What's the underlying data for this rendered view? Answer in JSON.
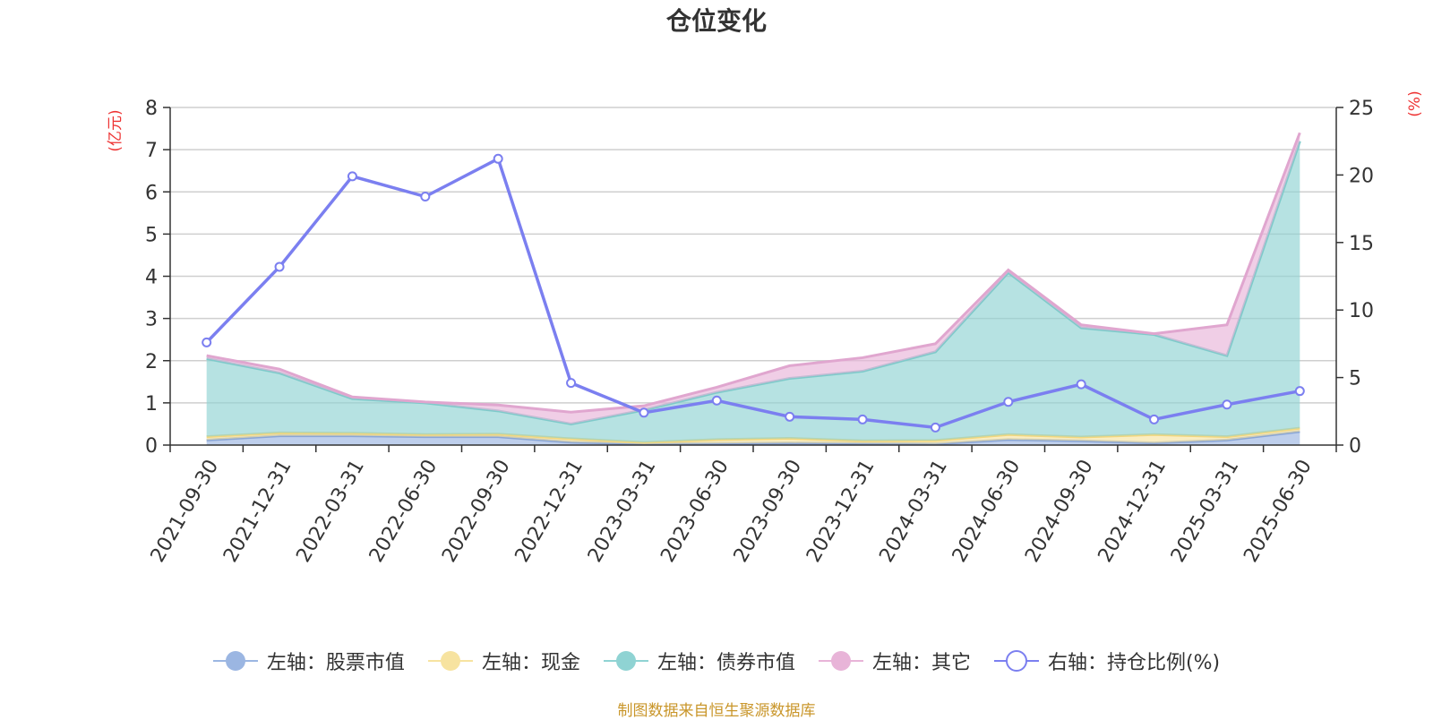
{
  "chart_data": {
    "type": "area",
    "title": "仓位变化",
    "categories": [
      "2021-09-30",
      "2021-12-31",
      "2022-03-31",
      "2022-06-30",
      "2022-09-30",
      "2022-12-31",
      "2023-03-31",
      "2023-06-30",
      "2023-09-30",
      "2023-12-31",
      "2024-03-31",
      "2024-06-30",
      "2024-09-30",
      "2024-12-31",
      "2025-03-31",
      "2025-06-30"
    ],
    "left_axis": {
      "unit": "(亿元)",
      "ylim": [
        0,
        8
      ],
      "ticks": [
        0,
        1,
        2,
        3,
        4,
        5,
        6,
        7,
        8
      ]
    },
    "right_axis": {
      "unit": "(%)",
      "ylim": [
        0,
        25
      ],
      "ticks": [
        0,
        5,
        10,
        15,
        20,
        25
      ]
    },
    "stacked": true,
    "series": [
      {
        "name": "左轴：股票市值",
        "axis": "left",
        "color": "#9bb6e2",
        "values": [
          0.12,
          0.22,
          0.22,
          0.2,
          0.2,
          0.07,
          0.03,
          0.04,
          0.05,
          0.04,
          0.03,
          0.13,
          0.1,
          0.05,
          0.12,
          0.32
        ]
      },
      {
        "name": "左轴：现金",
        "axis": "left",
        "color": "#f7e3a0",
        "values": [
          0.08,
          0.07,
          0.06,
          0.05,
          0.06,
          0.08,
          0.03,
          0.09,
          0.11,
          0.06,
          0.08,
          0.12,
          0.09,
          0.2,
          0.08,
          0.08
        ]
      },
      {
        "name": "左轴：债券市值",
        "axis": "left",
        "color": "#8fd3d3",
        "values": [
          1.85,
          1.42,
          0.82,
          0.75,
          0.55,
          0.35,
          0.77,
          1.12,
          1.42,
          1.65,
          2.1,
          3.84,
          2.59,
          2.37,
          1.92,
          6.8
        ]
      },
      {
        "name": "左轴：其它",
        "axis": "left",
        "color": "#e8b4d8",
        "values": [
          0.07,
          0.09,
          0.04,
          0.02,
          0.14,
          0.28,
          0.1,
          0.12,
          0.3,
          0.32,
          0.19,
          0.06,
          0.07,
          0.02,
          0.73,
          0.2
        ]
      },
      {
        "name": "右轴：持仓比例(%)",
        "axis": "right",
        "color": "#7b7ff0",
        "values": [
          7.6,
          13.2,
          19.9,
          18.4,
          21.2,
          4.6,
          2.4,
          3.3,
          2.1,
          1.9,
          1.3,
          3.2,
          4.5,
          1.9,
          3.0,
          4.0
        ]
      }
    ],
    "grid": true,
    "legend_position": "bottom"
  },
  "source_note": "制图数据来自恒生聚源数据库"
}
